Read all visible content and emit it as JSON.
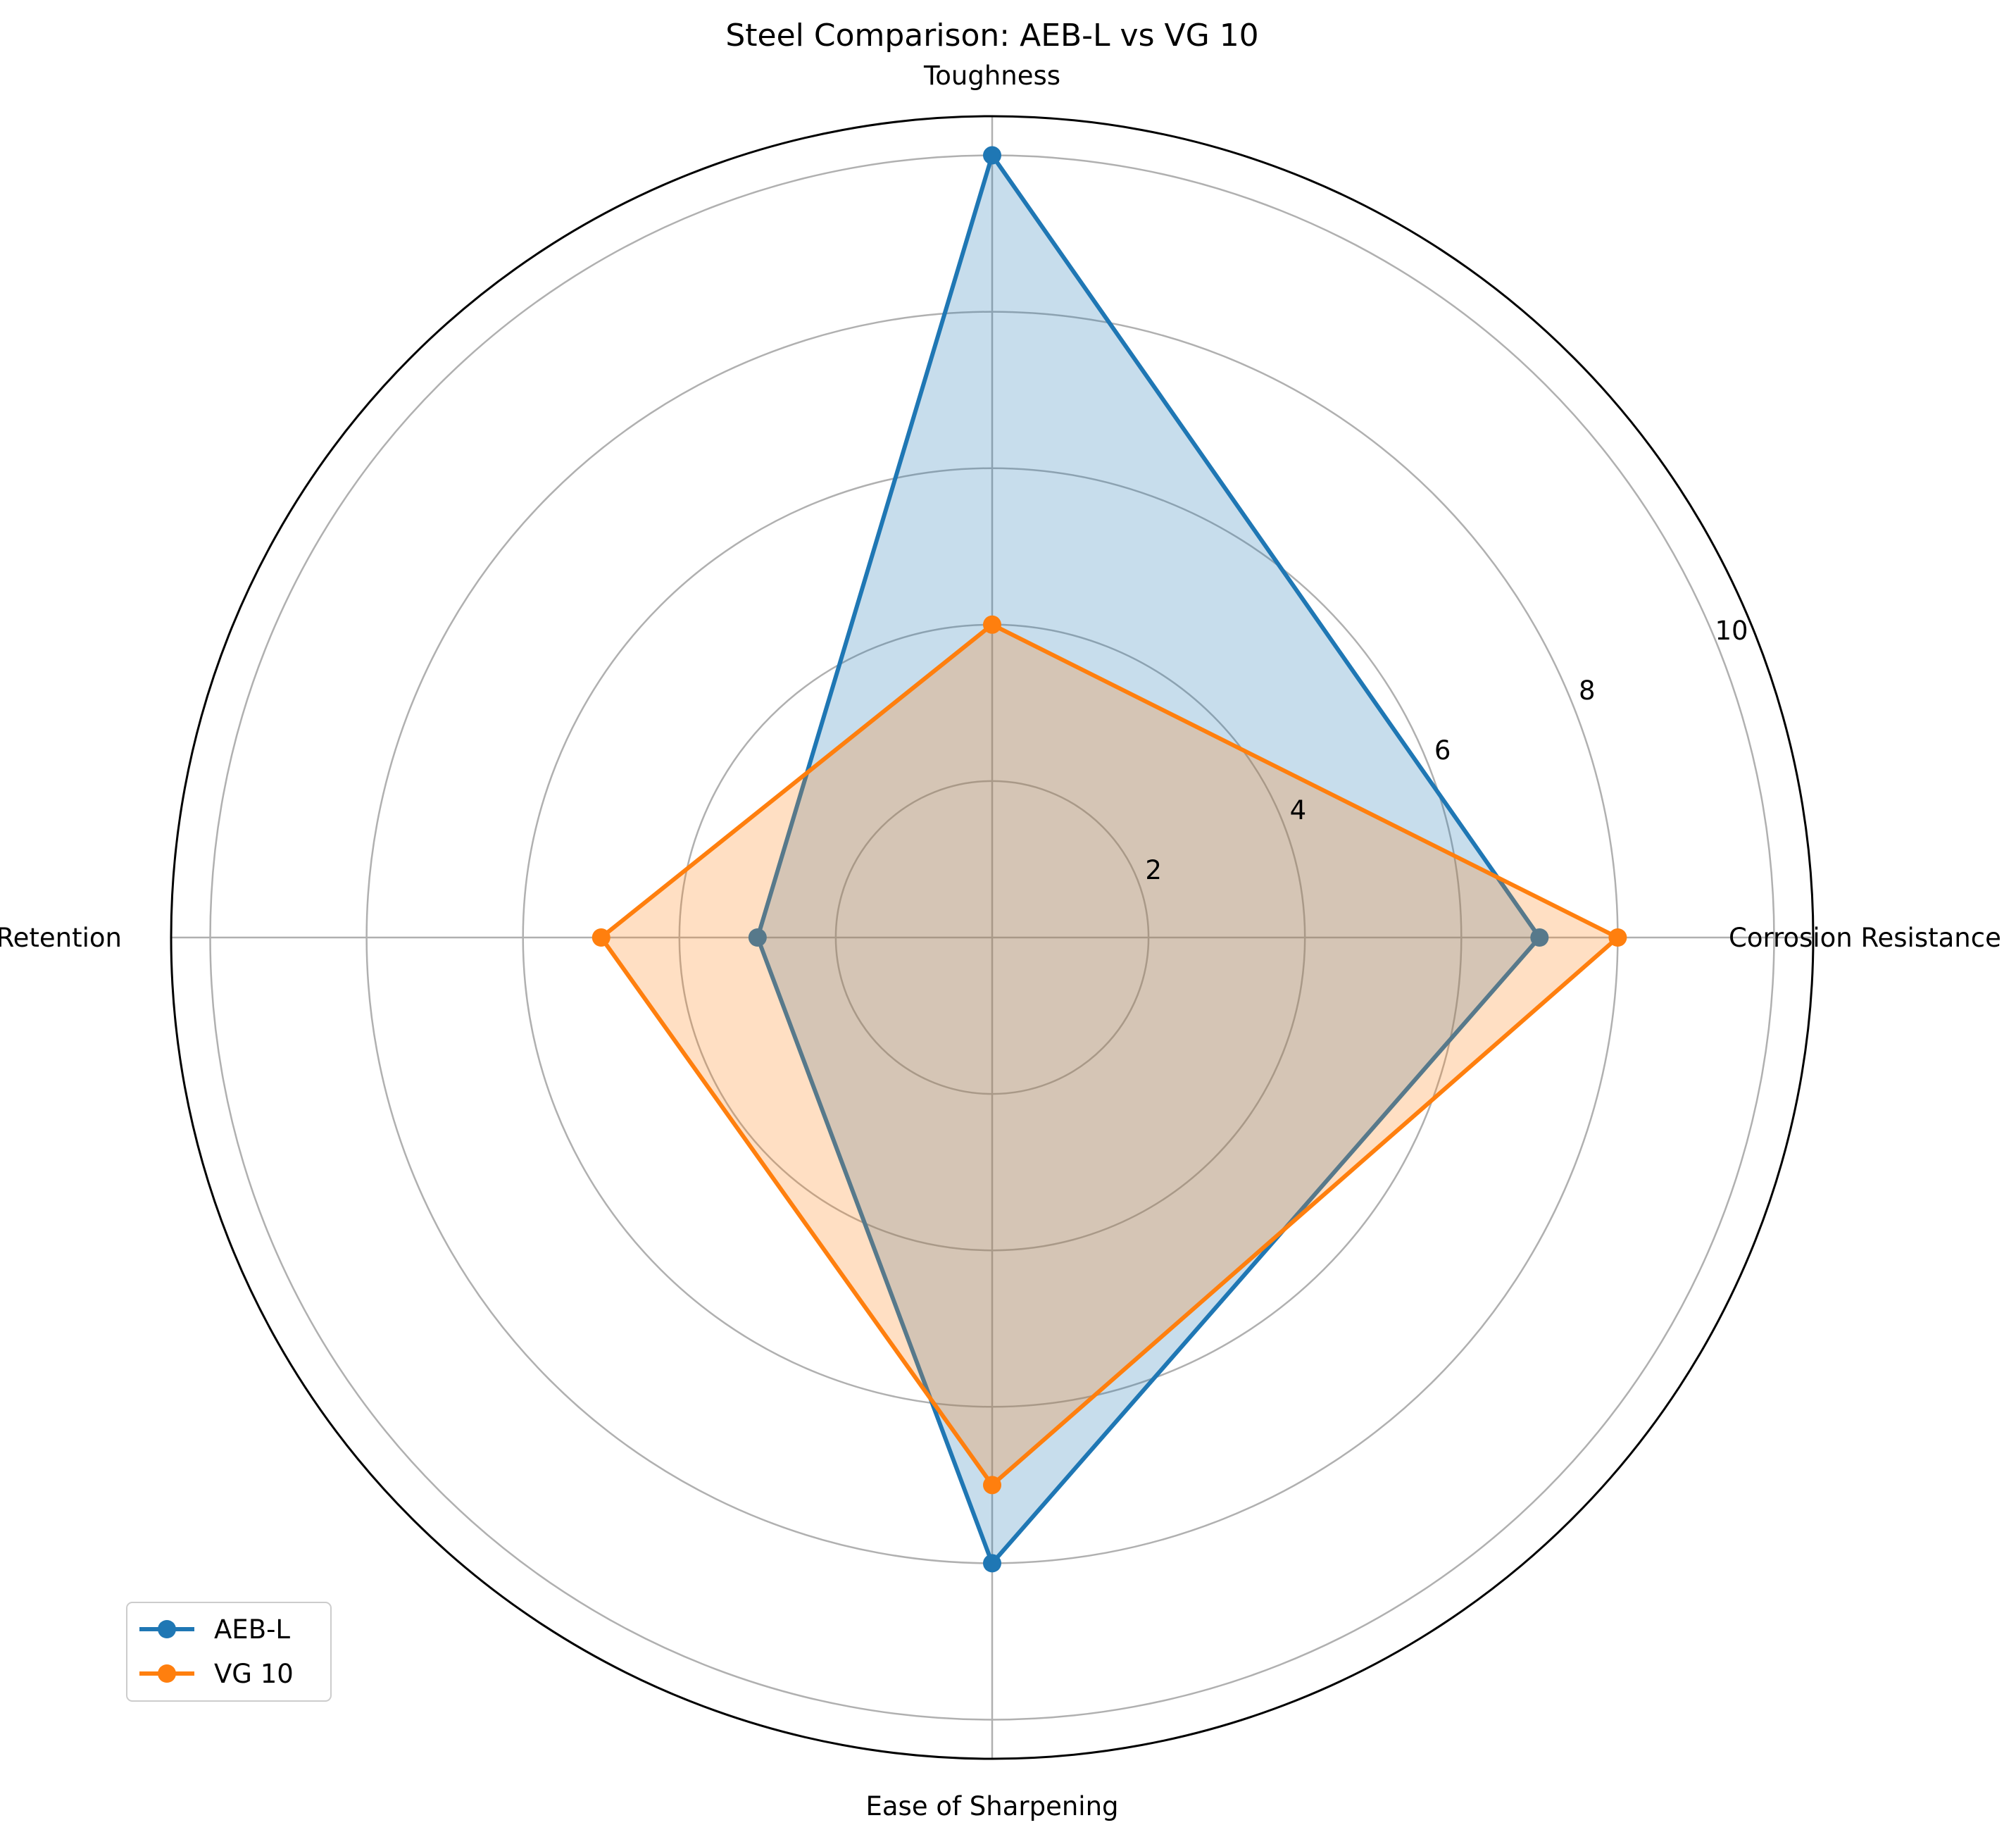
{
  "chart_data": {
    "type": "radar",
    "title": "Steel Comparison: AEB-L vs VG 10",
    "categories": [
      "Corrosion Resistance",
      "Toughness",
      "Edge Retention",
      "Ease of Sharpening"
    ],
    "rlim": [
      0,
      10.5
    ],
    "rticks": [
      2,
      4,
      6,
      8,
      10
    ],
    "rtick_labels": [
      "2",
      "4",
      "6",
      "8",
      "10"
    ],
    "grid": true,
    "legend_position": "lower-left",
    "series": [
      {
        "name": "AEB-L",
        "values": [
          7,
          10,
          3,
          8
        ],
        "color": "#1f77b4"
      },
      {
        "name": "VG 10",
        "values": [
          8,
          4,
          5,
          7
        ],
        "color": "#ff7f0e"
      }
    ]
  }
}
